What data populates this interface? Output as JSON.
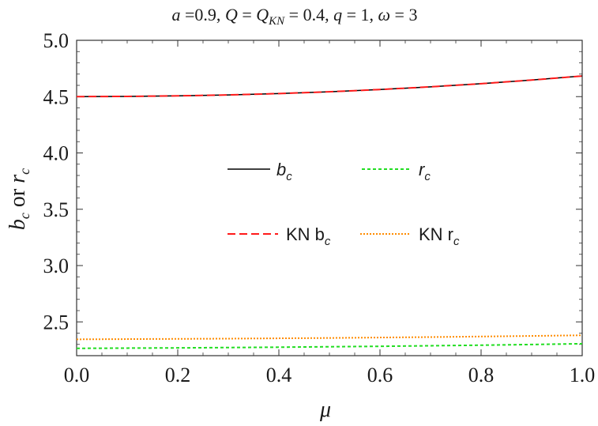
{
  "chart_data": {
    "type": "line",
    "title": "a =0.9, Q = QKN = 0.4, q = 1, ω = 3",
    "title_parts": {
      "a": "a",
      "a_val": " =0.9, ",
      "Q": "Q",
      "eq1": " = ",
      "Q2": "Q",
      "kn_sub": "KN",
      "q_val": " = 0.4, ",
      "q": "q",
      "q_eq": " = 1, ",
      "omega": "ω",
      "omega_eq": " = 3"
    },
    "xlabel": "μ",
    "ylabel": "b_c or r_c",
    "ylabel_parts": {
      "b": "b",
      "c1": "c",
      "or": " or ",
      "r": "r",
      "c2": "c"
    },
    "xlim": [
      0.0,
      1.0
    ],
    "ylim": [
      2.2,
      5.0
    ],
    "x_ticks": [
      "0.0",
      "0.2",
      "0.4",
      "0.6",
      "0.8",
      "1.0"
    ],
    "y_ticks": [
      "2.5",
      "3.0",
      "3.5",
      "4.0",
      "4.5",
      "5.0"
    ],
    "x": [
      0.0,
      0.1,
      0.2,
      0.3,
      0.4,
      0.5,
      0.6,
      0.7,
      0.8,
      0.9,
      1.0
    ],
    "series": [
      {
        "name": "b_c",
        "legend_main": "b",
        "legend_sub": "c",
        "color": "#000000",
        "dash": "solid",
        "values": [
          4.5,
          4.502,
          4.507,
          4.515,
          4.527,
          4.543,
          4.563,
          4.587,
          4.615,
          4.647,
          4.683
        ]
      },
      {
        "name": "r_c",
        "legend_main": "r",
        "legend_sub": "c",
        "color": "#22dd22",
        "dash": "dashed-fine",
        "values": [
          2.265,
          2.267,
          2.269,
          2.272,
          2.275,
          2.279,
          2.283,
          2.288,
          2.293,
          2.299,
          2.306
        ]
      },
      {
        "name": "KN b_c",
        "legend_main": "KN b",
        "legend_sub": "c",
        "color": "#ff1a1a",
        "dash": "dashed",
        "values": [
          4.5,
          4.502,
          4.507,
          4.515,
          4.527,
          4.543,
          4.563,
          4.587,
          4.615,
          4.647,
          4.683
        ]
      },
      {
        "name": "KN r_c",
        "legend_main": "KN r",
        "legend_sub": "c",
        "color": "#ff8c00",
        "dash": "dotted",
        "values": [
          2.345,
          2.347,
          2.349,
          2.351,
          2.354,
          2.357,
          2.361,
          2.365,
          2.37,
          2.375,
          2.381
        ]
      }
    ],
    "grid": false,
    "legend_position": "center"
  }
}
